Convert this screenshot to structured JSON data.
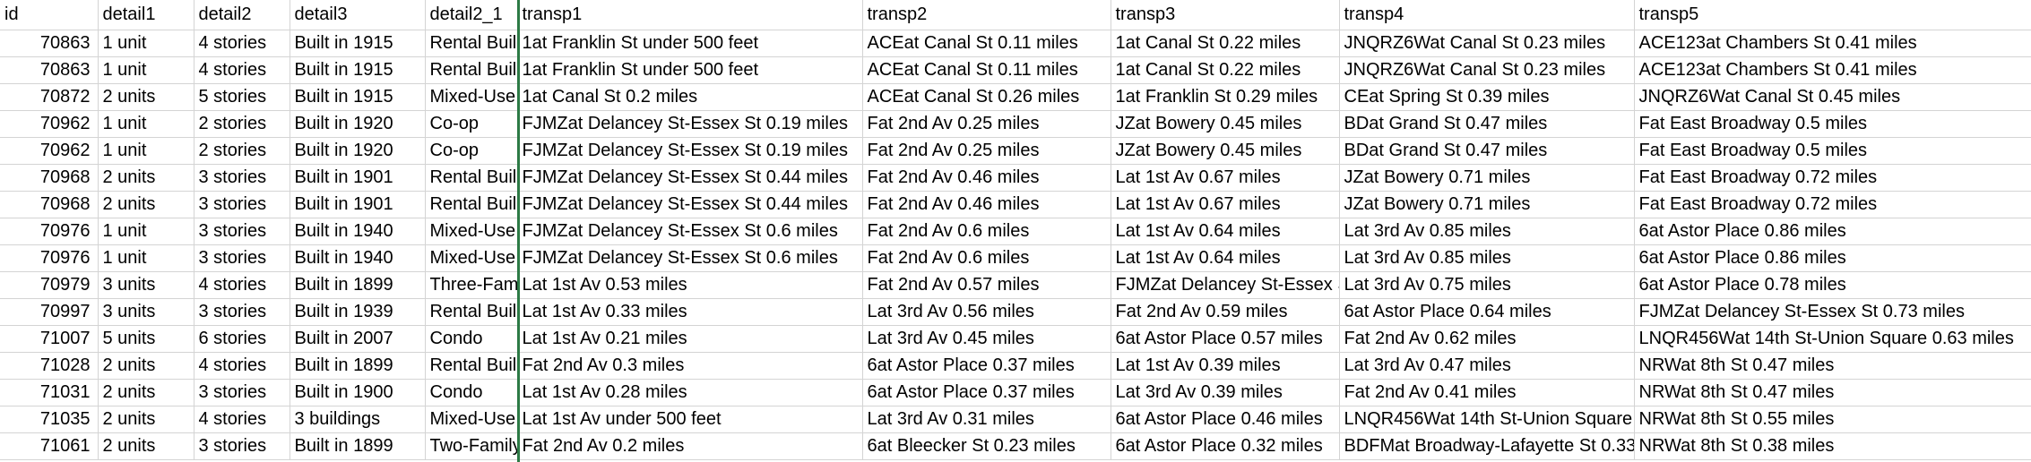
{
  "columns": [
    "id",
    "detail1",
    "detail2",
    "detail3",
    "detail2_1",
    "transp1",
    "transp2",
    "transp3",
    "transp4",
    "transp5"
  ],
  "rows": [
    [
      "70863",
      "1 unit",
      "4 stories",
      "Built in 1915",
      "Rental Buil",
      "1at Franklin St  under 500 feet",
      "ACEat Canal St  0.11 miles",
      "1at Canal St  0.22 miles",
      "JNQRZ6Wat Canal St  0.23 miles",
      "ACE123at Chambers St  0.41 miles"
    ],
    [
      "70863",
      "1 unit",
      "4 stories",
      "Built in 1915",
      "Rental Buil",
      "1at Franklin St  under 500 feet",
      "ACEat Canal St  0.11 miles",
      "1at Canal St  0.22 miles",
      "JNQRZ6Wat Canal St  0.23 miles",
      "ACE123at Chambers St  0.41 miles"
    ],
    [
      "70872",
      "2 units",
      "5 stories",
      "Built in 1915",
      "Mixed-Use",
      "1at Canal St  0.2 miles",
      "ACEat Canal St  0.26 miles",
      "1at Franklin St  0.29 miles",
      "CEat Spring St  0.39 miles",
      "JNQRZ6Wat Canal St  0.45 miles"
    ],
    [
      "70962",
      "1 unit",
      "2 stories",
      "Built in 1920",
      "Co-op",
      "FJMZat Delancey St-Essex St  0.19 miles",
      "Fat 2nd Av  0.25 miles",
      "JZat Bowery  0.45 miles",
      "BDat Grand St  0.47 miles",
      "Fat East Broadway  0.5 miles"
    ],
    [
      "70962",
      "1 unit",
      "2 stories",
      "Built in 1920",
      "Co-op",
      "FJMZat Delancey St-Essex St  0.19 miles",
      "Fat 2nd Av  0.25 miles",
      "JZat Bowery  0.45 miles",
      "BDat Grand St  0.47 miles",
      "Fat East Broadway  0.5 miles"
    ],
    [
      "70968",
      "2 units",
      "3 stories",
      "Built in 1901",
      "Rental Buil",
      "FJMZat Delancey St-Essex St  0.44 miles",
      "Fat 2nd Av  0.46 miles",
      "Lat 1st Av  0.67 miles",
      "JZat Bowery  0.71 miles",
      "Fat East Broadway  0.72 miles"
    ],
    [
      "70968",
      "2 units",
      "3 stories",
      "Built in 1901",
      "Rental Buil",
      "FJMZat Delancey St-Essex St  0.44 miles",
      "Fat 2nd Av  0.46 miles",
      "Lat 1st Av  0.67 miles",
      "JZat Bowery  0.71 miles",
      "Fat East Broadway  0.72 miles"
    ],
    [
      "70976",
      "1 unit",
      "3 stories",
      "Built in 1940",
      "Mixed-Use",
      "FJMZat Delancey St-Essex St  0.6 miles",
      "Fat 2nd Av  0.6 miles",
      "Lat 1st Av  0.64 miles",
      "Lat 3rd Av  0.85 miles",
      "6at Astor Place  0.86 miles"
    ],
    [
      "70976",
      "1 unit",
      "3 stories",
      "Built in 1940",
      "Mixed-Use",
      "FJMZat Delancey St-Essex St  0.6 miles",
      "Fat 2nd Av  0.6 miles",
      "Lat 1st Av  0.64 miles",
      "Lat 3rd Av  0.85 miles",
      "6at Astor Place  0.86 miles"
    ],
    [
      "70979",
      "3 units",
      "4 stories",
      "Built in 1899",
      "Three-Fami",
      "Lat 1st Av  0.53 miles",
      "Fat 2nd Av  0.57 miles",
      "FJMZat Delancey St-Essex St",
      "Lat 3rd Av  0.75 miles",
      "6at Astor Place  0.78 miles"
    ],
    [
      "70997",
      "3 units",
      "3 stories",
      "Built in 1939",
      "Rental Buil",
      "Lat 1st Av  0.33 miles",
      "Lat 3rd Av  0.56 miles",
      "Fat 2nd Av  0.59 miles",
      "6at Astor Place  0.64 miles",
      "FJMZat Delancey St-Essex St  0.73 miles"
    ],
    [
      "71007",
      "5 units",
      "6 stories",
      "Built in 2007",
      "Condo",
      "Lat 1st Av  0.21 miles",
      "Lat 3rd Av  0.45 miles",
      "6at Astor Place  0.57 miles",
      "Fat 2nd Av  0.62 miles",
      "LNQR456Wat 14th St-Union Square  0.63 miles"
    ],
    [
      "71028",
      "2 units",
      "4 stories",
      "Built in 1899",
      "Rental Buil",
      "Fat 2nd Av  0.3 miles",
      "6at Astor Place  0.37 miles",
      "Lat 1st Av  0.39 miles",
      "Lat 3rd Av  0.47 miles",
      "NRWat 8th St  0.47 miles"
    ],
    [
      "71031",
      "2 units",
      "3 stories",
      "Built in 1900",
      "Condo",
      "Lat 1st Av  0.28 miles",
      "6at Astor Place  0.37 miles",
      "Lat 3rd Av  0.39 miles",
      "Fat 2nd Av  0.41 miles",
      "NRWat 8th St  0.47 miles"
    ],
    [
      "71035",
      "2 units",
      "4 stories",
      "3 buildings",
      "Mixed-Use",
      "Lat 1st Av  under 500 feet",
      "Lat 3rd Av  0.31 miles",
      "6at Astor Place  0.46 miles",
      "LNQR456Wat 14th St-Union Square",
      "NRWat 8th St  0.55 miles"
    ],
    [
      "71061",
      "2 units",
      "3 stories",
      "Built in 1899",
      "Two-Family",
      "Fat 2nd Av  0.2 miles",
      "6at Bleecker St  0.23 miles",
      "6at Astor Place  0.32 miles",
      "BDFMat Broadway-Lafayette St  0.33",
      "NRWat 8th St  0.38 miles"
    ]
  ]
}
